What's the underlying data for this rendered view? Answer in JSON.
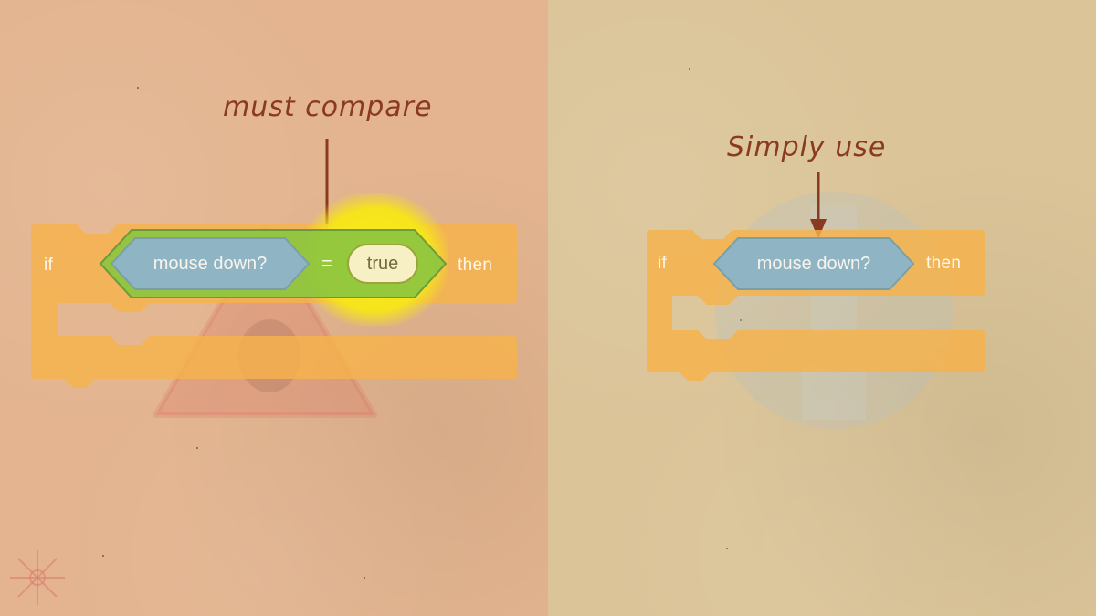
{
  "left": {
    "annotation": "must compare",
    "block": {
      "if_label": "if",
      "condition_label": "mouse down?",
      "operator": "=",
      "value": "true",
      "then_label": "then"
    }
  },
  "right": {
    "annotation": "Simply use",
    "block": {
      "if_label": "if",
      "condition_label": "mouse down?",
      "then_label": "then"
    }
  },
  "colors": {
    "left_background": "#e3b48f",
    "right_background": "#dbc498",
    "control_block": "#f6b24b",
    "sensing_block": "#8fb4c4",
    "operator_block": "#8cc63f",
    "highlight": "#f7f014",
    "annotation_ink": "#8a3a1e"
  },
  "icons": [
    "warning-triangle-watermark",
    "checkmark-circle-watermark",
    "snowflake-icon"
  ]
}
